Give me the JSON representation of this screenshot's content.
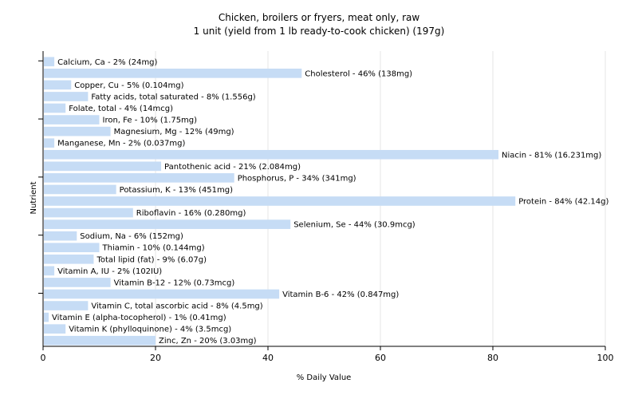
{
  "chart_data": {
    "type": "bar",
    "orientation": "horizontal",
    "title": "Chicken, broilers or fryers, meat only, raw",
    "subtitle": "1 unit (yield from 1 lb ready-to-cook chicken) (197g)",
    "xlabel": "% Daily Value",
    "ylabel": "Nutrient",
    "xlim": [
      0,
      100
    ],
    "x_ticks": [
      0,
      20,
      40,
      60,
      80,
      100
    ],
    "grid": true,
    "bar_color": "#c6dcf5",
    "categories": [
      "Calcium, Ca",
      "Cholesterol",
      "Copper, Cu",
      "Fatty acids, total saturated",
      "Folate, total",
      "Iron, Fe",
      "Magnesium, Mg",
      "Manganese, Mn",
      "Niacin",
      "Pantothenic acid",
      "Phosphorus, P",
      "Potassium, K",
      "Protein",
      "Riboflavin",
      "Selenium, Se",
      "Sodium, Na",
      "Thiamin",
      "Total lipid (fat)",
      "Vitamin A, IU",
      "Vitamin B-12",
      "Vitamin B-6",
      "Vitamin C, total ascorbic acid",
      "Vitamin E (alpha-tocopherol)",
      "Vitamin K (phylloquinone)",
      "Zinc, Zn"
    ],
    "values": [
      2,
      46,
      5,
      8,
      4,
      10,
      12,
      2,
      81,
      21,
      34,
      13,
      84,
      16,
      44,
      6,
      10,
      9,
      2,
      12,
      42,
      8,
      1,
      4,
      20
    ],
    "labels": [
      "Calcium, Ca - 2% (24mg)",
      "Cholesterol - 46% (138mg)",
      "Copper, Cu - 5% (0.104mg)",
      "Fatty acids, total saturated - 8% (1.556g)",
      "Folate, total - 4% (14mcg)",
      "Iron, Fe - 10% (1.75mg)",
      "Magnesium, Mg - 12% (49mg)",
      "Manganese, Mn - 2% (0.037mg)",
      "Niacin - 81% (16.231mg)",
      "Pantothenic acid - 21% (2.084mg)",
      "Phosphorus, P - 34% (341mg)",
      "Potassium, K - 13% (451mg)",
      "Protein - 84% (42.14g)",
      "Riboflavin - 16% (0.280mg)",
      "Selenium, Se - 44% (30.9mcg)",
      "Sodium, Na - 6% (152mg)",
      "Thiamin - 10% (0.144mg)",
      "Total lipid (fat) - 9% (6.07g)",
      "Vitamin A, IU - 2% (102IU)",
      "Vitamin B-12 - 12% (0.73mcg)",
      "Vitamin B-6 - 42% (0.847mg)",
      "Vitamin C, total ascorbic acid - 8% (4.5mg)",
      "Vitamin E (alpha-tocopherol) - 1% (0.41mg)",
      "Vitamin K (phylloquinone) - 4% (3.5mcg)",
      "Zinc, Zn - 20% (3.03mg)"
    ]
  }
}
